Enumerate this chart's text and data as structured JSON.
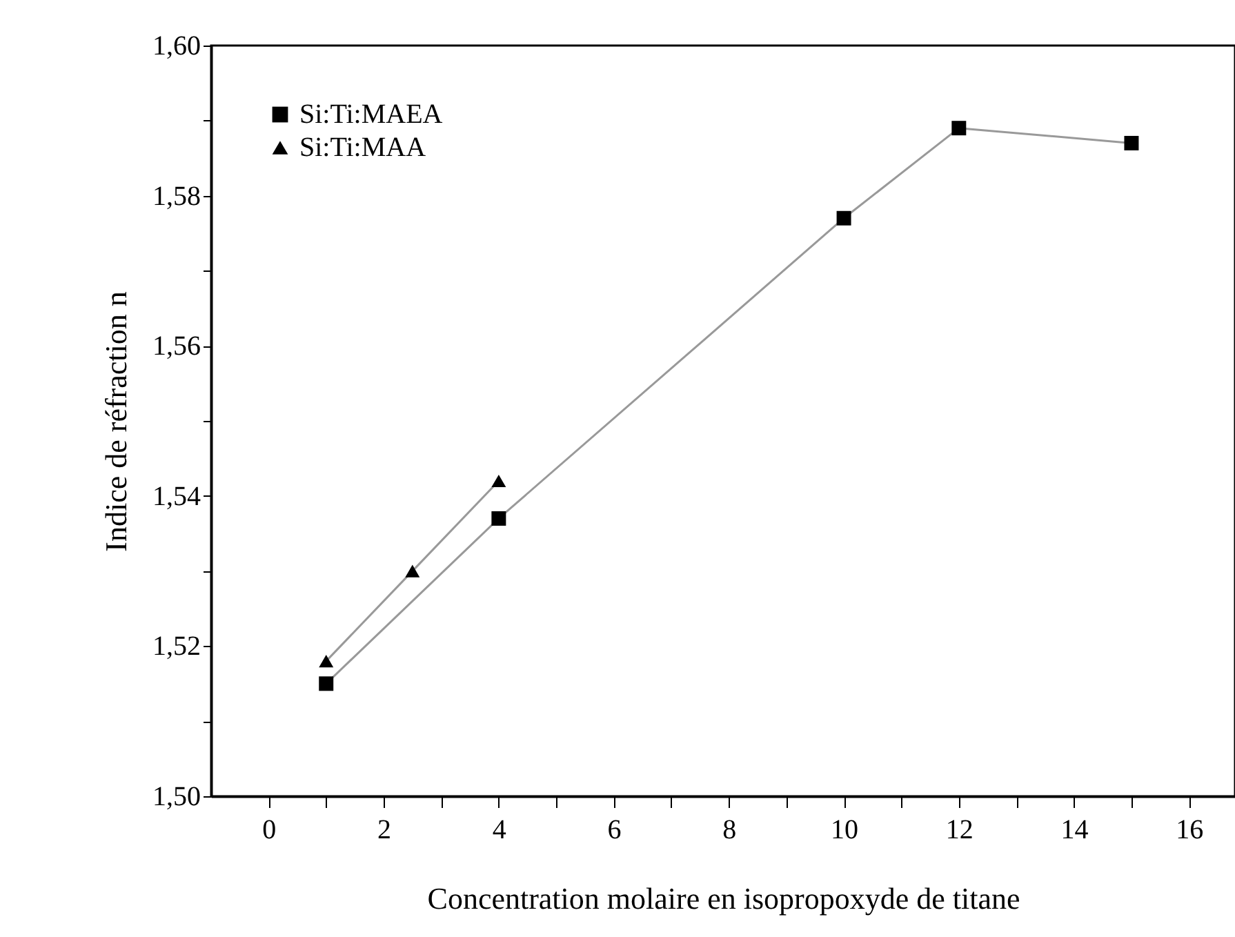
{
  "chart_data": {
    "type": "line",
    "xlabel": "Concentration molaire en isopropoxyde de titane",
    "ylabel": "Indice de réfraction n",
    "xlim": [
      -1,
      16.8
    ],
    "ylim": [
      1.5,
      1.6
    ],
    "xticks": [
      0,
      {
        "value": 1,
        "label": null
      },
      2,
      {
        "value": 3,
        "label": null
      },
      4,
      {
        "value": 5,
        "label": null
      },
      6,
      {
        "value": 7,
        "label": null
      },
      8,
      {
        "value": 9,
        "label": null
      },
      10,
      {
        "value": 11,
        "label": null
      },
      12,
      {
        "value": 13,
        "label": null
      },
      14,
      {
        "value": 15,
        "label": null
      },
      16
    ],
    "yticks": [
      {
        "value": 1.5,
        "label": "1,50"
      },
      {
        "value": 1.51,
        "label": null
      },
      {
        "value": 1.52,
        "label": "1,52"
      },
      {
        "value": 1.53,
        "label": null
      },
      {
        "value": 1.54,
        "label": "1,54"
      },
      {
        "value": 1.55,
        "label": null
      },
      {
        "value": 1.56,
        "label": "1,56"
      },
      {
        "value": 1.57,
        "label": null
      },
      {
        "value": 1.58,
        "label": "1,58"
      },
      {
        "value": 1.59,
        "label": null
      },
      {
        "value": 1.6,
        "label": "1,60"
      }
    ],
    "legend": "top left",
    "grid": false,
    "series": [
      {
        "name": "Si:Ti:MAEA",
        "color": "#000000",
        "marker": "square",
        "x": [
          1,
          4,
          10,
          12,
          15
        ],
        "values": [
          1.515,
          1.537,
          1.577,
          1.589,
          1.587
        ]
      },
      {
        "name": "Si:Ti:MAA",
        "color": "#000000",
        "marker": "triangle",
        "x": [
          1,
          2.5,
          4
        ],
        "values": [
          1.518,
          1.53,
          1.542
        ]
      }
    ]
  }
}
